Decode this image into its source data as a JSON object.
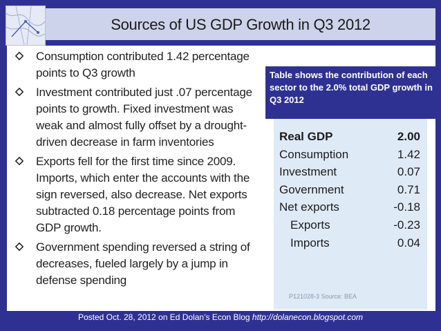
{
  "title": "Sources of US GDP Growth in Q3 2012",
  "bullets": [
    "Consumption contributed 1.42  percentage points to Q3 growth",
    "Investment contributed just .07 percentage points to growth. Fixed investment was weak and almost fully offset by a drought-driven decrease in farm inventories",
    "Exports fell for the first time since 2009. Imports, which enter the accounts with the sign reversed, also decrease. Net exports subtracted 0.18 percentage points from GDP growth.",
    "Government spending reversed a string of decreases, fueled largely by a jump in defense spending"
  ],
  "note": "Table shows the contribution of each sector to the 2.0% total GDP growth in Q3 2012",
  "table": {
    "rows": [
      {
        "label": "Real GDP",
        "value": "2.00"
      },
      {
        "label": "Consumption",
        "value": "1.42"
      },
      {
        "label": "Investment",
        "value": "0.07"
      },
      {
        "label": "Government",
        "value": "0.71"
      },
      {
        "label": "Net exports",
        "value": "-0.18"
      },
      {
        "label": "Exports",
        "value": "-0.23"
      },
      {
        "label": "Imports",
        "value": "0.04"
      }
    ],
    "source": "P121028-3 Source: BEA"
  },
  "footer": {
    "text": "Posted Oct. 28, 2012 on Ed Dolan’s Econ Blog",
    "url": "http://dolanecon.blogspot.com"
  },
  "colors": {
    "background": "#2e3192",
    "title_bar": "#cdd3ea",
    "table_bg": "#dfeaf7"
  }
}
